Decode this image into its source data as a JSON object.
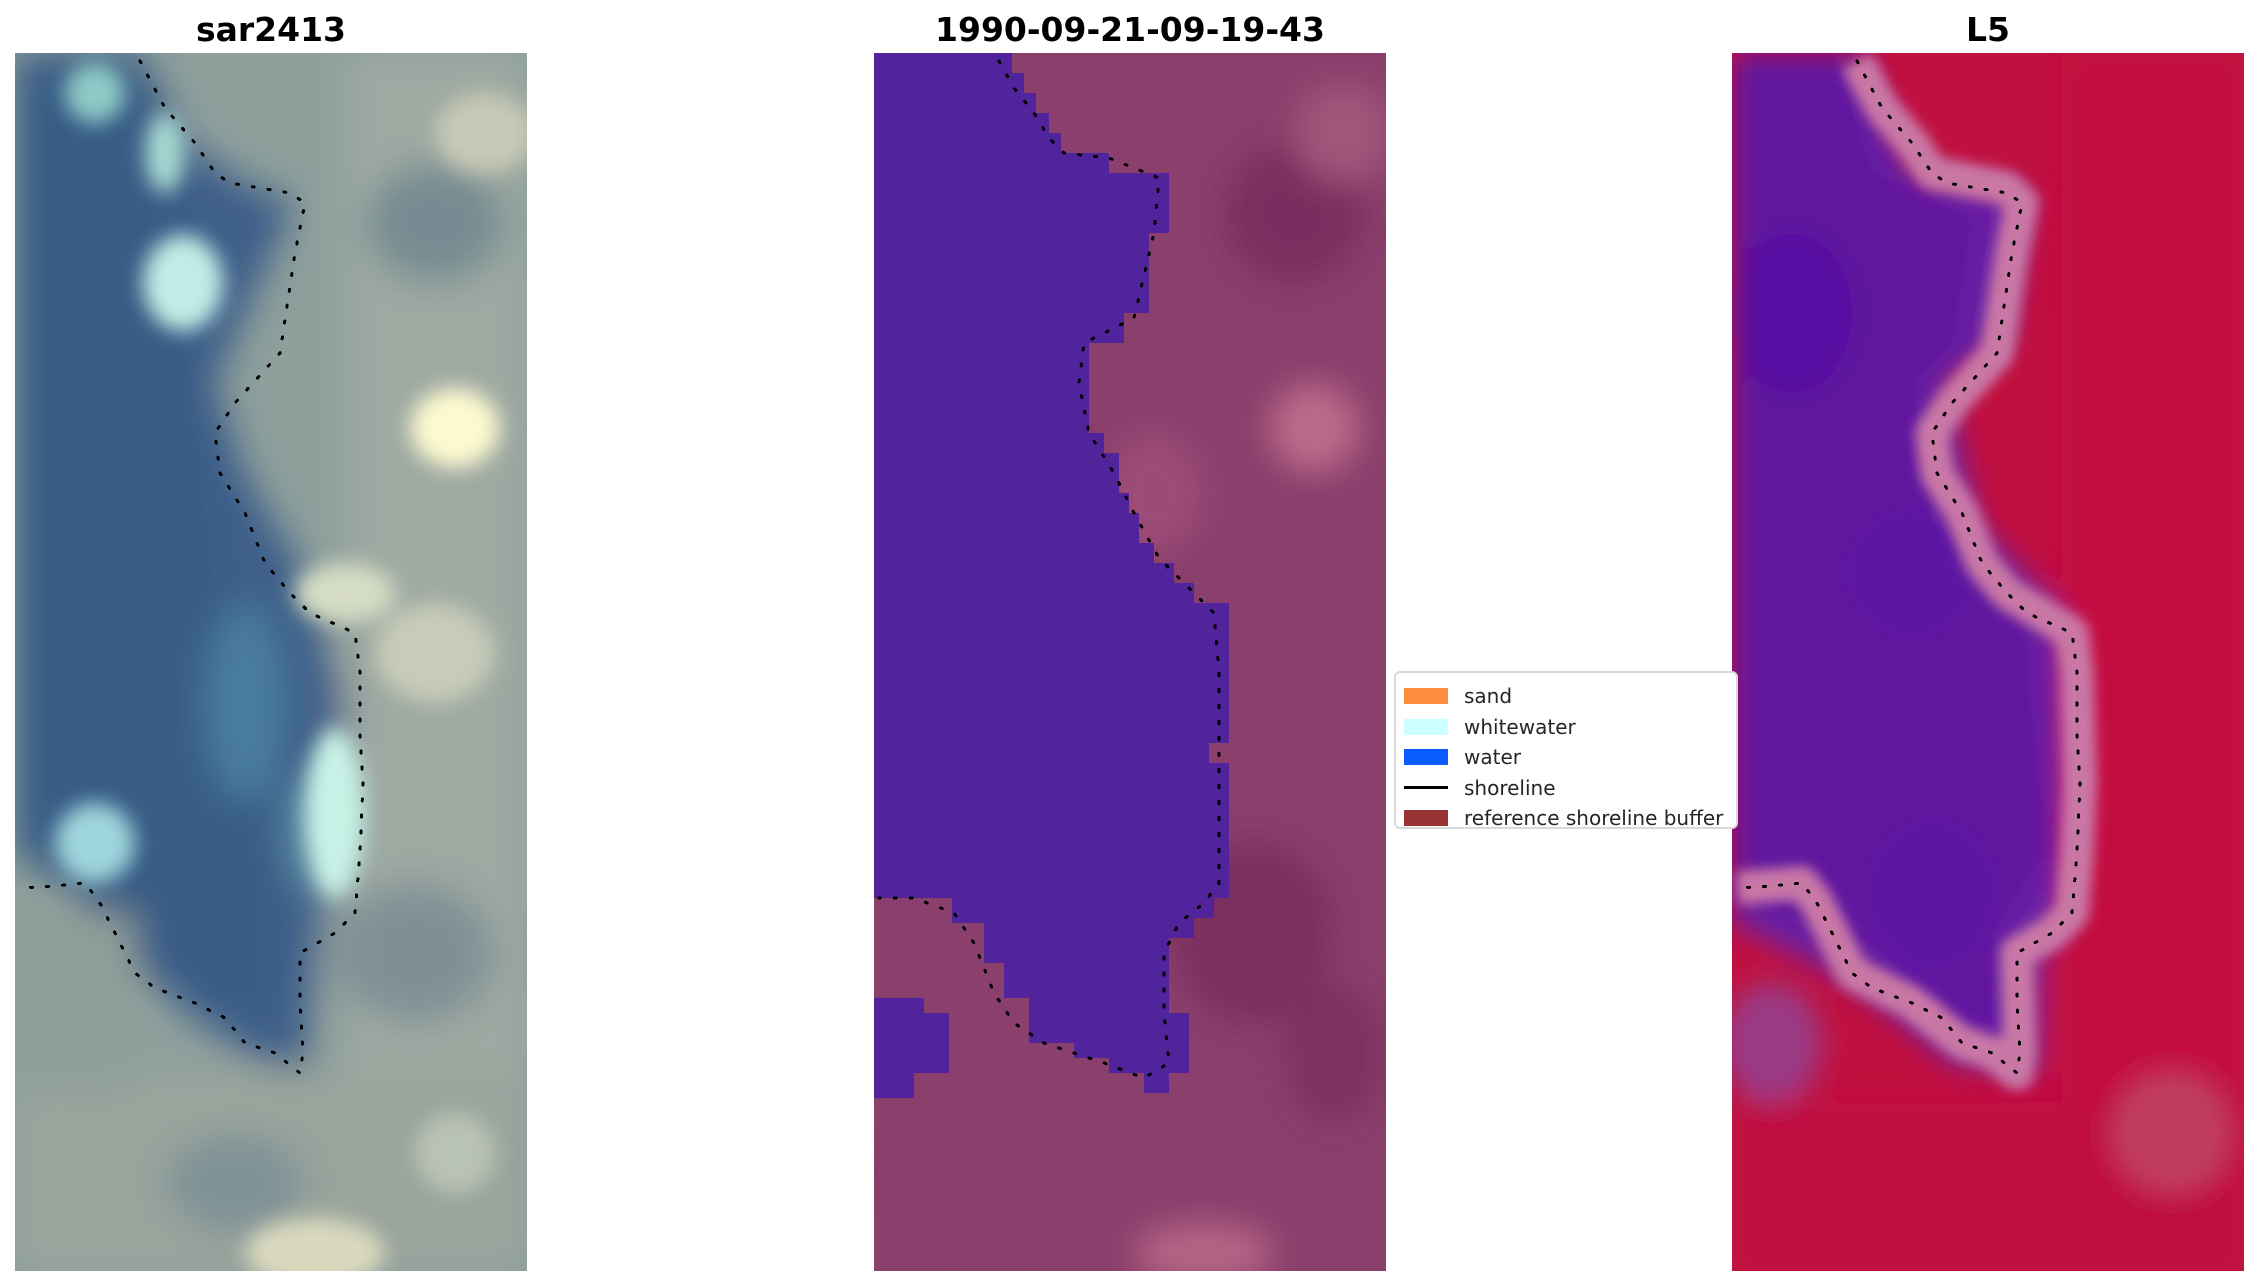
{
  "panels": [
    {
      "id": "rgb",
      "title": "sar2413"
    },
    {
      "id": "ndwi",
      "title": "1990-09-21-09-19-43"
    },
    {
      "id": "l5",
      "title": "L5"
    }
  ],
  "legend": {
    "items": [
      {
        "label": "sand",
        "color": "#ff8c3c",
        "kind": "patch"
      },
      {
        "label": "whitewater",
        "color": "#ccffff",
        "kind": "patch"
      },
      {
        "label": "water",
        "color": "#0a5cff",
        "kind": "patch"
      },
      {
        "label": "shoreline",
        "color": "#000000",
        "kind": "line"
      },
      {
        "label": "reference shoreline buffer",
        "color": "#983333",
        "kind": "patch"
      }
    ]
  },
  "colors": {
    "deep_water": "#3a5c86",
    "ndwi_water": "#52249b",
    "ndwi_land": "#8a3f6c",
    "l5_water": "#6a1ea6",
    "l5_land": "#c0103f"
  }
}
